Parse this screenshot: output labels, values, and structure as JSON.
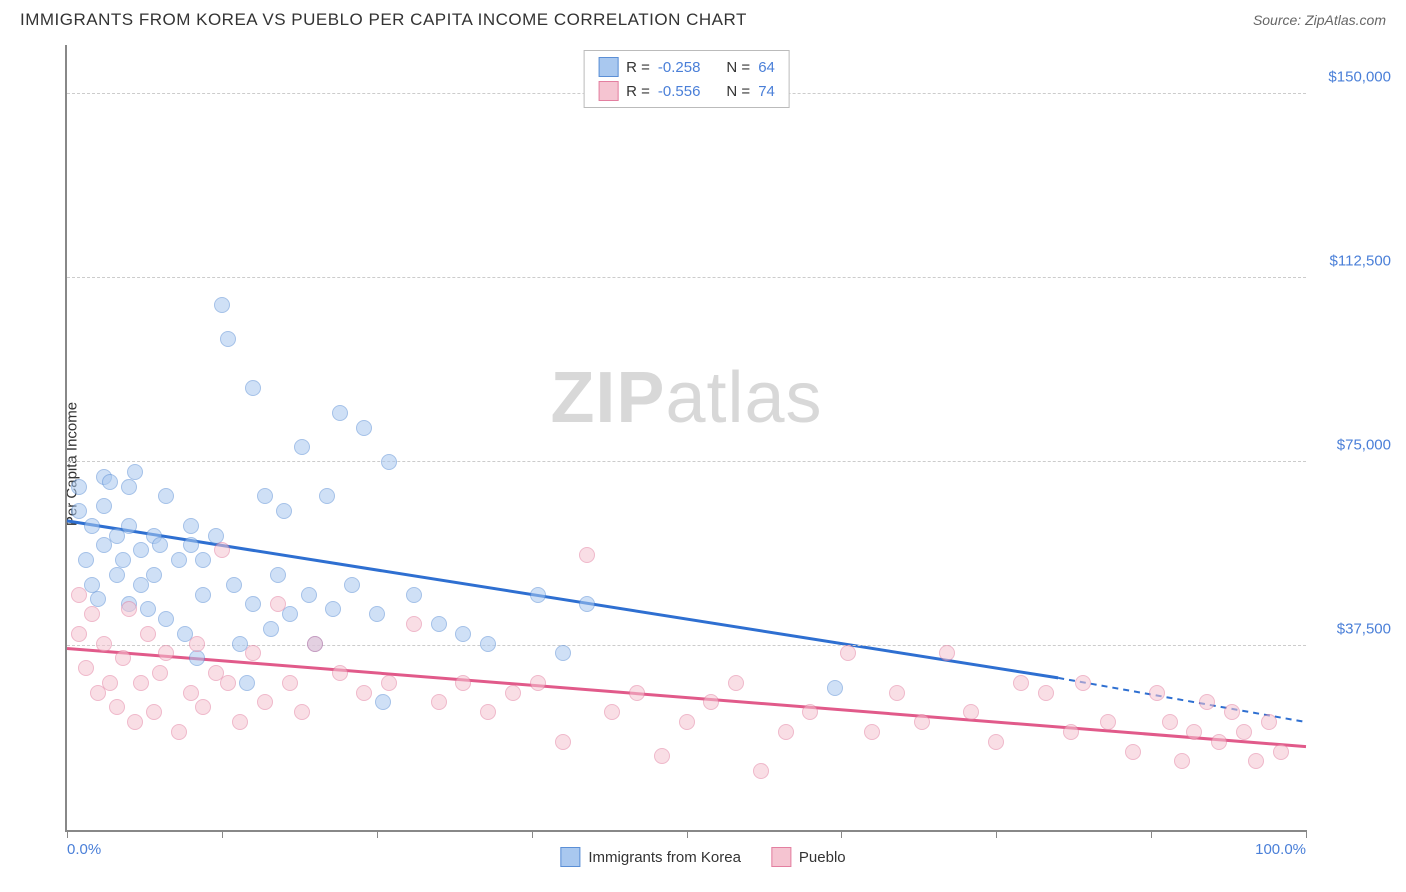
{
  "title": "IMMIGRANTS FROM KOREA VS PUEBLO PER CAPITA INCOME CORRELATION CHART",
  "source": "Source: ZipAtlas.com",
  "ylabel": "Per Capita Income",
  "watermark_a": "ZIP",
  "watermark_b": "atlas",
  "chart": {
    "type": "scatter",
    "xlim": [
      0,
      100
    ],
    "ylim": [
      0,
      160000
    ],
    "x_ticks": [
      0,
      12.5,
      25,
      37.5,
      50,
      62.5,
      75,
      87.5,
      100
    ],
    "x_tick_labels": {
      "0": "0.0%",
      "100": "100.0%"
    },
    "y_gridlines": [
      37500,
      75000,
      112500,
      150000
    ],
    "y_tick_labels": {
      "37500": "$37,500",
      "75000": "$75,000",
      "112500": "$112,500",
      "150000": "$150,000"
    },
    "background_color": "#ffffff",
    "grid_color": "#cccccc",
    "axis_color": "#888888",
    "label_color": "#4a7fd8",
    "marker_radius": 8,
    "marker_opacity": 0.55,
    "marker_border_width": 1.5,
    "series": [
      {
        "id": "korea",
        "label": "Immigrants from Korea",
        "fill": "#a9c8ef",
        "stroke": "#5b8fd6",
        "line_color": "#2e6fd1",
        "R": "-0.258",
        "N": "64",
        "regression": {
          "x1": 0,
          "y1": 63000,
          "x2": 80,
          "y2": 31000,
          "dash_x2": 100,
          "dash_y2": 22000
        },
        "points": [
          [
            1,
            70000
          ],
          [
            1,
            65000
          ],
          [
            1.5,
            55000
          ],
          [
            2,
            50000
          ],
          [
            2,
            62000
          ],
          [
            2.5,
            47000
          ],
          [
            3,
            72000
          ],
          [
            3,
            58000
          ],
          [
            3,
            66000
          ],
          [
            3.5,
            71000
          ],
          [
            4,
            52000
          ],
          [
            4,
            60000
          ],
          [
            4.5,
            55000
          ],
          [
            5,
            70000
          ],
          [
            5,
            62000
          ],
          [
            5,
            46000
          ],
          [
            5.5,
            73000
          ],
          [
            6,
            57000
          ],
          [
            6,
            50000
          ],
          [
            6.5,
            45000
          ],
          [
            7,
            60000
          ],
          [
            7,
            52000
          ],
          [
            7.5,
            58000
          ],
          [
            8,
            43000
          ],
          [
            8,
            68000
          ],
          [
            9,
            55000
          ],
          [
            9.5,
            40000
          ],
          [
            10,
            58000
          ],
          [
            10,
            62000
          ],
          [
            10.5,
            35000
          ],
          [
            11,
            48000
          ],
          [
            11,
            55000
          ],
          [
            12,
            60000
          ],
          [
            12.5,
            107000
          ],
          [
            13,
            100000
          ],
          [
            13.5,
            50000
          ],
          [
            14,
            38000
          ],
          [
            14.5,
            30000
          ],
          [
            15,
            90000
          ],
          [
            15,
            46000
          ],
          [
            16,
            68000
          ],
          [
            16.5,
            41000
          ],
          [
            17,
            52000
          ],
          [
            17.5,
            65000
          ],
          [
            18,
            44000
          ],
          [
            19,
            78000
          ],
          [
            19.5,
            48000
          ],
          [
            20,
            38000
          ],
          [
            21,
            68000
          ],
          [
            21.5,
            45000
          ],
          [
            22,
            85000
          ],
          [
            23,
            50000
          ],
          [
            24,
            82000
          ],
          [
            25,
            44000
          ],
          [
            25.5,
            26000
          ],
          [
            26,
            75000
          ],
          [
            28,
            48000
          ],
          [
            30,
            42000
          ],
          [
            32,
            40000
          ],
          [
            34,
            38000
          ],
          [
            38,
            48000
          ],
          [
            40,
            36000
          ],
          [
            42,
            46000
          ],
          [
            62,
            29000
          ]
        ]
      },
      {
        "id": "pueblo",
        "label": "Pueblo",
        "fill": "#f5c4d1",
        "stroke": "#e37fa0",
        "line_color": "#e15a8a",
        "R": "-0.556",
        "N": "74",
        "regression": {
          "x1": 0,
          "y1": 37000,
          "x2": 100,
          "y2": 17000
        },
        "points": [
          [
            1,
            48000
          ],
          [
            1,
            40000
          ],
          [
            1.5,
            33000
          ],
          [
            2,
            44000
          ],
          [
            2.5,
            28000
          ],
          [
            3,
            38000
          ],
          [
            3.5,
            30000
          ],
          [
            4,
            25000
          ],
          [
            4.5,
            35000
          ],
          [
            5,
            45000
          ],
          [
            5.5,
            22000
          ],
          [
            6,
            30000
          ],
          [
            6.5,
            40000
          ],
          [
            7,
            24000
          ],
          [
            7.5,
            32000
          ],
          [
            8,
            36000
          ],
          [
            9,
            20000
          ],
          [
            10,
            28000
          ],
          [
            10.5,
            38000
          ],
          [
            11,
            25000
          ],
          [
            12,
            32000
          ],
          [
            12.5,
            57000
          ],
          [
            13,
            30000
          ],
          [
            14,
            22000
          ],
          [
            15,
            36000
          ],
          [
            16,
            26000
          ],
          [
            17,
            46000
          ],
          [
            18,
            30000
          ],
          [
            19,
            24000
          ],
          [
            20,
            38000
          ],
          [
            22,
            32000
          ],
          [
            24,
            28000
          ],
          [
            26,
            30000
          ],
          [
            28,
            42000
          ],
          [
            30,
            26000
          ],
          [
            32,
            30000
          ],
          [
            34,
            24000
          ],
          [
            36,
            28000
          ],
          [
            38,
            30000
          ],
          [
            40,
            18000
          ],
          [
            42,
            56000
          ],
          [
            44,
            24000
          ],
          [
            46,
            28000
          ],
          [
            48,
            15000
          ],
          [
            50,
            22000
          ],
          [
            52,
            26000
          ],
          [
            54,
            30000
          ],
          [
            56,
            12000
          ],
          [
            58,
            20000
          ],
          [
            60,
            24000
          ],
          [
            63,
            36000
          ],
          [
            65,
            20000
          ],
          [
            67,
            28000
          ],
          [
            69,
            22000
          ],
          [
            71,
            36000
          ],
          [
            73,
            24000
          ],
          [
            75,
            18000
          ],
          [
            77,
            30000
          ],
          [
            79,
            28000
          ],
          [
            81,
            20000
          ],
          [
            82,
            30000
          ],
          [
            84,
            22000
          ],
          [
            86,
            16000
          ],
          [
            88,
            28000
          ],
          [
            89,
            22000
          ],
          [
            90,
            14000
          ],
          [
            91,
            20000
          ],
          [
            92,
            26000
          ],
          [
            93,
            18000
          ],
          [
            94,
            24000
          ],
          [
            95,
            20000
          ],
          [
            96,
            14000
          ],
          [
            97,
            22000
          ],
          [
            98,
            16000
          ]
        ]
      }
    ]
  },
  "legend_top": {
    "R_label": "R =",
    "N_label": "N ="
  }
}
